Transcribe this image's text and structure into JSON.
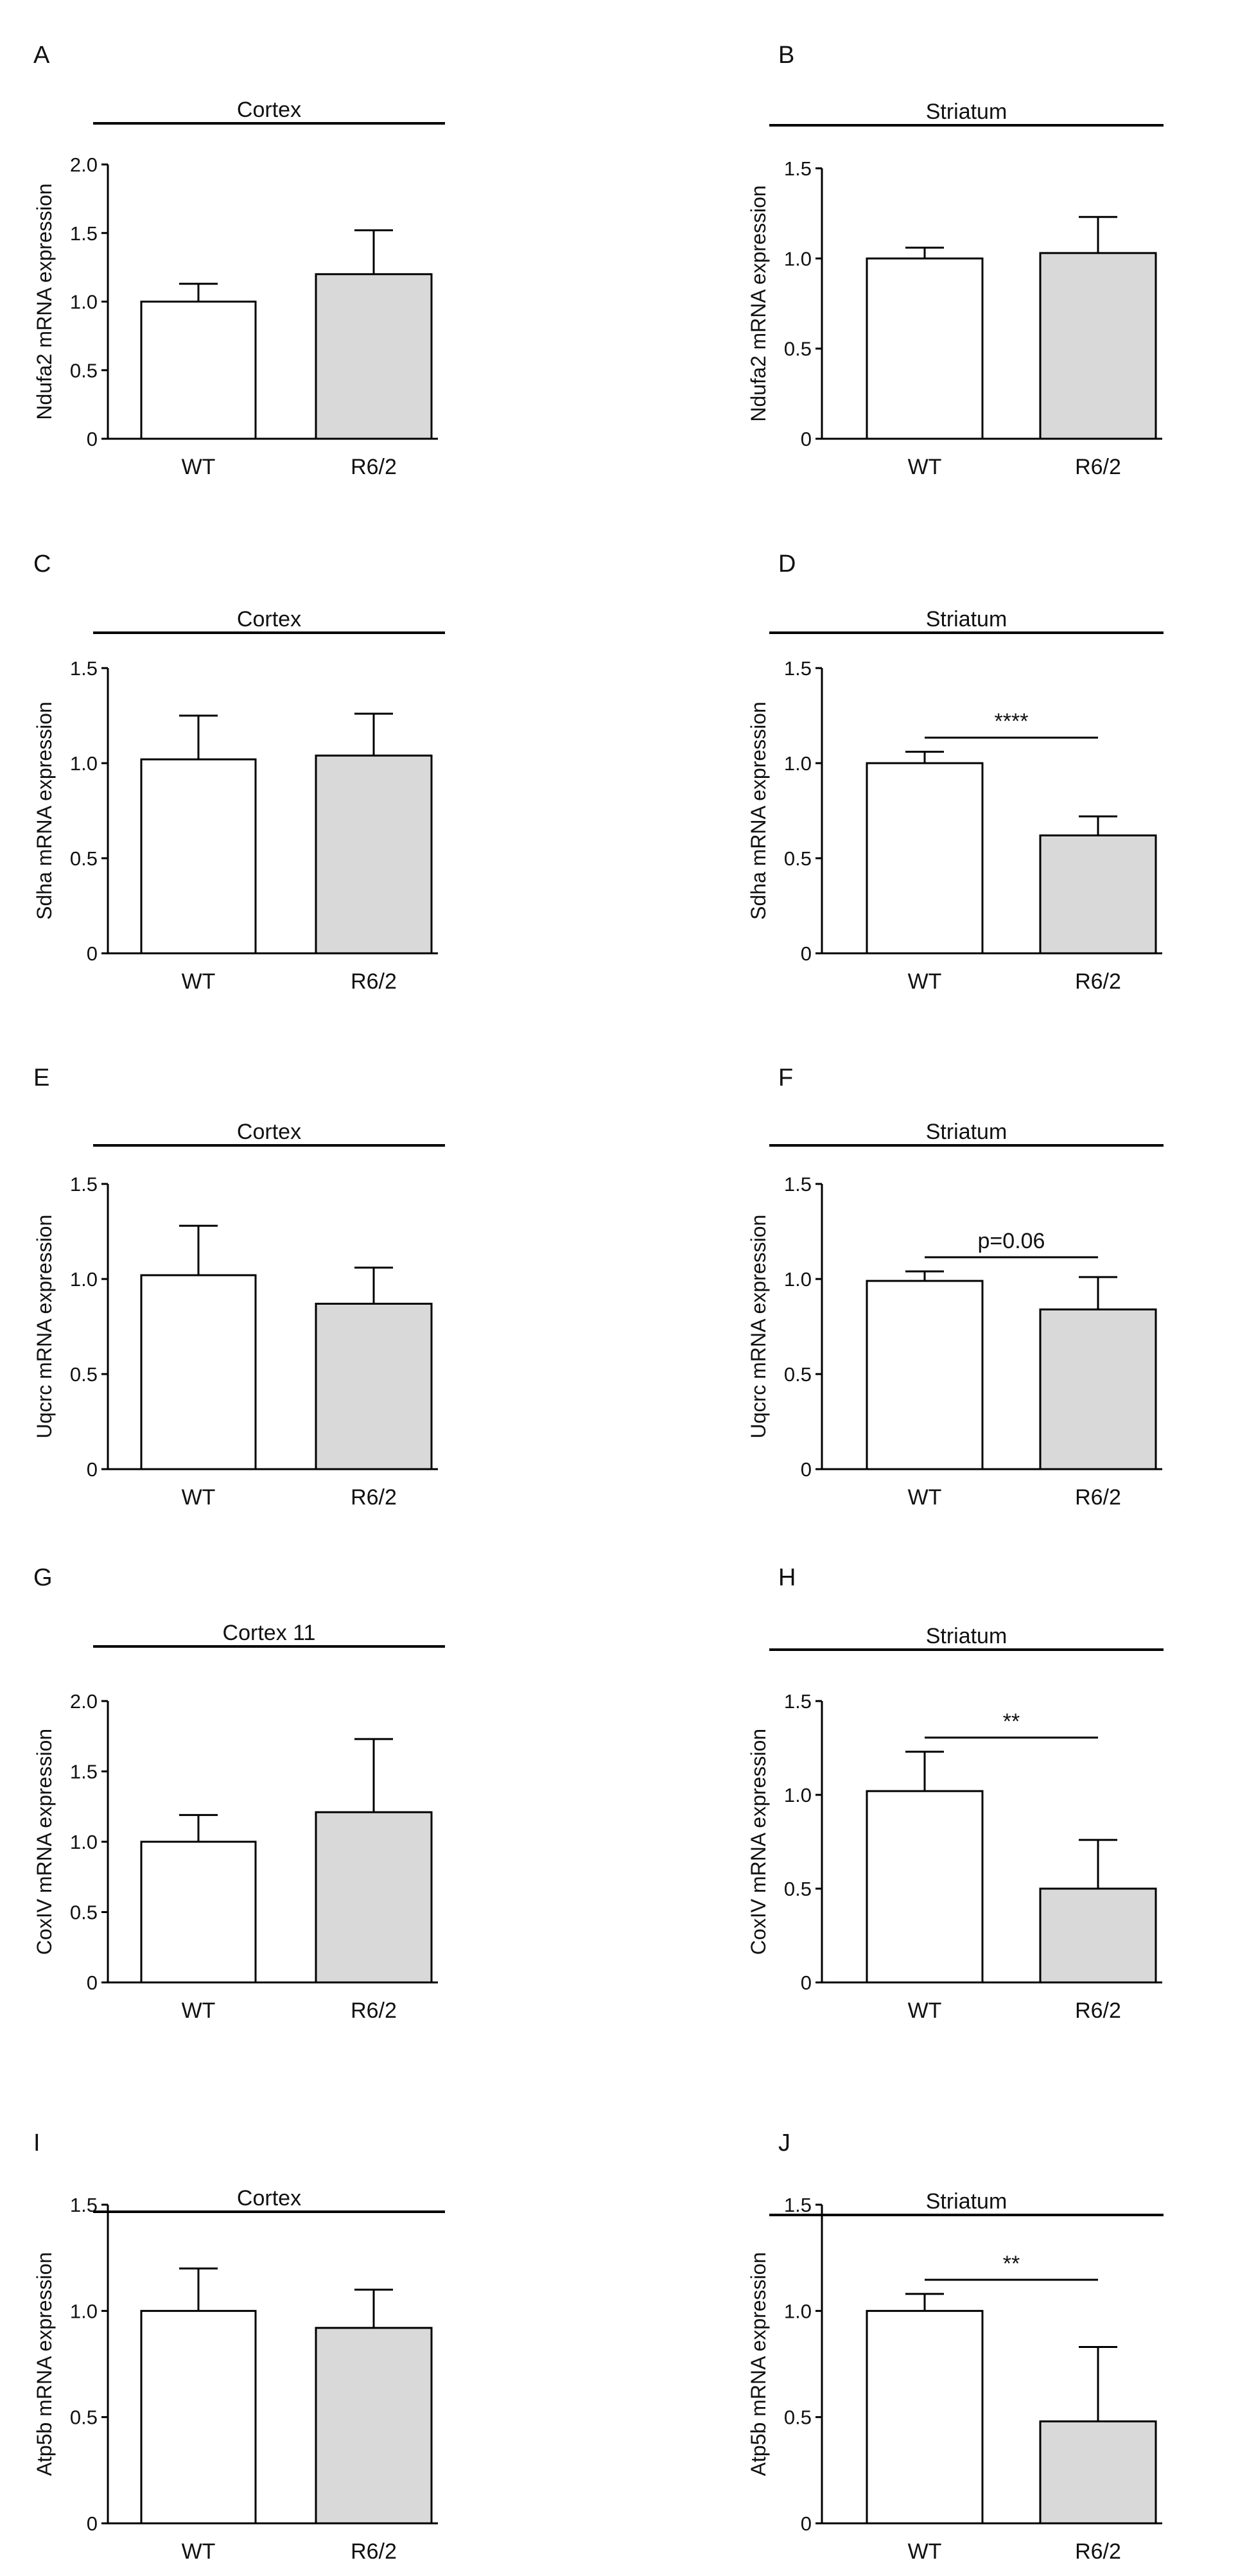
{
  "chart_data": [
    {
      "type": "bar",
      "panel_label": "A",
      "region": "Cortex",
      "categories": [
        "WT",
        "R6/2"
      ],
      "values": [
        1.0,
        1.2
      ],
      "errors": [
        0.13,
        0.32
      ],
      "ylabel": "Ndufa2 mRNA expression",
      "ylim": [
        0,
        2.0
      ],
      "yticks": [
        "0",
        "0.5",
        "1.0",
        "1.5",
        "2.0"
      ],
      "significance": null,
      "colors": [
        "#ffffff",
        "#d9d9d9"
      ]
    },
    {
      "type": "bar",
      "panel_label": "B",
      "region": "Striatum",
      "categories": [
        "WT",
        "R6/2"
      ],
      "values": [
        1.0,
        1.03
      ],
      "errors": [
        0.06,
        0.2
      ],
      "ylabel": "Ndufa2 mRNA expression",
      "ylim": [
        0,
        1.5
      ],
      "yticks": [
        "0",
        "0.5",
        "1.0",
        "1.5"
      ],
      "significance": null,
      "colors": [
        "#ffffff",
        "#d9d9d9"
      ]
    },
    {
      "type": "bar",
      "panel_label": "C",
      "region": "Cortex",
      "categories": [
        "WT",
        "R6/2"
      ],
      "values": [
        1.02,
        1.04
      ],
      "errors": [
        0.23,
        0.22
      ],
      "ylabel": "Sdha mRNA expression",
      "ylim": [
        0,
        1.5
      ],
      "yticks": [
        "0",
        "0.5",
        "1.0",
        "1.5"
      ],
      "significance": null,
      "colors": [
        "#ffffff",
        "#d9d9d9"
      ]
    },
    {
      "type": "bar",
      "panel_label": "D",
      "region": "Striatum",
      "categories": [
        "WT",
        "R6/2"
      ],
      "values": [
        1.0,
        0.62
      ],
      "errors": [
        0.06,
        0.1
      ],
      "ylabel": "Sdha mRNA expression",
      "ylim": [
        0,
        1.5
      ],
      "yticks": [
        "0",
        "0.5",
        "1.0",
        "1.5"
      ],
      "significance": "****",
      "colors": [
        "#ffffff",
        "#d9d9d9"
      ]
    },
    {
      "type": "bar",
      "panel_label": "E",
      "region": "Cortex",
      "categories": [
        "WT",
        "R6/2"
      ],
      "values": [
        1.02,
        0.87
      ],
      "errors": [
        0.26,
        0.19
      ],
      "ylabel": "Uqcrc mRNA expression",
      "ylim": [
        0,
        1.5
      ],
      "yticks": [
        "0",
        "0.5",
        "1.0",
        "1.5"
      ],
      "significance": null,
      "colors": [
        "#ffffff",
        "#d9d9d9"
      ]
    },
    {
      "type": "bar",
      "panel_label": "F",
      "region": "Striatum",
      "categories": [
        "WT",
        "R6/2"
      ],
      "values": [
        0.99,
        0.84
      ],
      "errors": [
        0.05,
        0.17
      ],
      "ylabel": "Uqcrc mRNA expression",
      "ylim": [
        0,
        1.5
      ],
      "yticks": [
        "0",
        "0.5",
        "1.0",
        "1.5"
      ],
      "significance": "p=0.06",
      "colors": [
        "#ffffff",
        "#d9d9d9"
      ]
    },
    {
      "type": "bar",
      "panel_label": "G",
      "region": "Cortex 11",
      "categories": [
        "WT",
        "R6/2"
      ],
      "values": [
        1.0,
        1.21
      ],
      "errors": [
        0.19,
        0.52
      ],
      "ylabel": "CoxIV mRNA expression",
      "ylim": [
        0,
        2.0
      ],
      "yticks": [
        "0",
        "0.5",
        "1.0",
        "1.5",
        "2.0"
      ],
      "significance": null,
      "colors": [
        "#ffffff",
        "#d9d9d9"
      ]
    },
    {
      "type": "bar",
      "panel_label": "H",
      "region": "Striatum",
      "categories": [
        "WT",
        "R6/2"
      ],
      "values": [
        1.02,
        0.5
      ],
      "errors": [
        0.21,
        0.26
      ],
      "ylabel": "CoxIV mRNA expression",
      "ylim": [
        0,
        1.5
      ],
      "yticks": [
        "0",
        "0.5",
        "1.0",
        "1.5"
      ],
      "significance": "**",
      "colors": [
        "#ffffff",
        "#d9d9d9"
      ]
    },
    {
      "type": "bar",
      "panel_label": "I",
      "region": "Cortex",
      "categories": [
        "WT",
        "R6/2"
      ],
      "values": [
        1.0,
        0.92
      ],
      "errors": [
        0.2,
        0.18
      ],
      "ylabel": "Atp5b mRNA expression",
      "ylim": [
        0,
        1.5
      ],
      "yticks": [
        "0",
        "0.5",
        "1.0",
        "1.5"
      ],
      "significance": null,
      "colors": [
        "#ffffff",
        "#d9d9d9"
      ]
    },
    {
      "type": "bar",
      "panel_label": "J",
      "region": "Striatum",
      "categories": [
        "WT",
        "R6/2"
      ],
      "values": [
        1.0,
        0.48
      ],
      "errors": [
        0.08,
        0.35
      ],
      "ylabel": "Atp5b mRNA expression",
      "ylim": [
        0,
        1.5
      ],
      "yticks": [
        "0",
        "0.5",
        "1.0",
        "1.5"
      ],
      "significance": "**",
      "colors": [
        "#ffffff",
        "#d9d9d9"
      ]
    }
  ]
}
